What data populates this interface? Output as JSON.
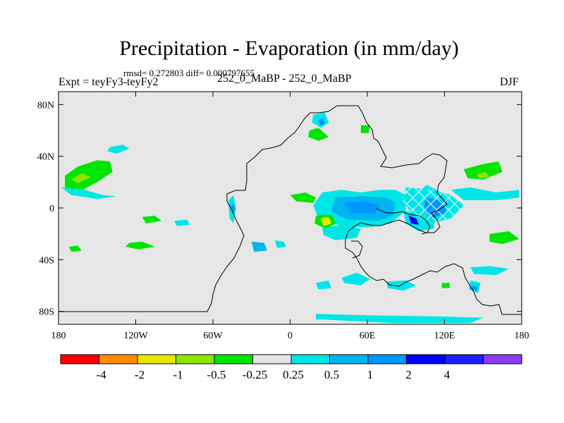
{
  "header": {
    "title": "Precipitation - Evaporation (in mm/day)",
    "stats": "rmsd= 0.272803 diff= 0.000797655",
    "expt": "Expt = teyFy3-teyFy2",
    "center_label": "252_0_MaBP - 252_0_MaBP",
    "season": "DJF"
  },
  "chart_data": {
    "type": "heatmap",
    "title": "Precipitation - Evaporation (in mm/day)",
    "x_axis": {
      "range": [
        -180,
        180
      ],
      "ticks": [
        -180,
        -120,
        -60,
        0,
        60,
        120,
        180
      ],
      "tick_labels": [
        "180",
        "120W",
        "60W",
        "0",
        "60E",
        "120E",
        "180"
      ]
    },
    "y_axis": {
      "range": [
        -90,
        90
      ],
      "ticks": [
        80,
        40,
        0,
        -40,
        -80
      ],
      "tick_labels": [
        "80N",
        "40N",
        "0",
        "40S",
        "80S"
      ]
    },
    "background_color": "#e6e6e6",
    "colorbar": {
      "colors": [
        "#ff0000",
        "#ff8c00",
        "#e6e600",
        "#8ce600",
        "#00e600",
        "#e6e6e6",
        "#00e6e6",
        "#00b4f0",
        "#0096ff",
        "#0000ff",
        "#1e1eff",
        "#8c3cf0"
      ],
      "labels": [
        "-4",
        "-2",
        "-1",
        "-0.5",
        "-0.25",
        "0.25",
        "0.5",
        "1",
        "2",
        "4"
      ]
    },
    "regions": [
      {
        "color": "#00e600",
        "polygon": [
          [
            -175,
            25
          ],
          [
            -165,
            32
          ],
          [
            -150,
            37
          ],
          [
            -140,
            36
          ],
          [
            -138,
            28
          ],
          [
            -150,
            20
          ],
          [
            -165,
            12
          ],
          [
            -175,
            14
          ]
        ]
      },
      {
        "color": "#8ce600",
        "polygon": [
          [
            -170,
            22
          ],
          [
            -162,
            27
          ],
          [
            -155,
            24
          ],
          [
            -165,
            19
          ]
        ]
      },
      {
        "color": "#00e6e6",
        "polygon": [
          [
            -178,
            16
          ],
          [
            -160,
            14
          ],
          [
            -145,
            10
          ],
          [
            -135,
            9
          ],
          [
            -150,
            7
          ],
          [
            -170,
            10
          ]
        ]
      },
      {
        "color": "#00e6e6",
        "polygon": [
          [
            -140,
            47
          ],
          [
            -130,
            49
          ],
          [
            -125,
            46
          ],
          [
            -135,
            42
          ],
          [
            -142,
            44
          ]
        ]
      },
      {
        "color": "#00e600",
        "polygon": [
          [
            -125,
            -27
          ],
          [
            -115,
            -26
          ],
          [
            -105,
            -30
          ],
          [
            -118,
            -32
          ],
          [
            -128,
            -30
          ]
        ]
      },
      {
        "color": "#00e600",
        "polygon": [
          [
            -115,
            -7
          ],
          [
            -105,
            -6
          ],
          [
            -100,
            -10
          ],
          [
            -112,
            -12
          ]
        ]
      },
      {
        "color": "#00e6e6",
        "polygon": [
          [
            -90,
            -10
          ],
          [
            -80,
            -9
          ],
          [
            -78,
            -13
          ],
          [
            -88,
            -14
          ]
        ]
      },
      {
        "color": "#00e600",
        "polygon": [
          [
            -172,
            -30
          ],
          [
            -165,
            -29
          ],
          [
            -162,
            -33
          ],
          [
            -170,
            -34
          ]
        ]
      },
      {
        "color": "#00e6e6",
        "polygon": [
          [
            -48,
            6
          ],
          [
            -44,
            10
          ],
          [
            -42,
            0
          ],
          [
            -44,
            -12
          ],
          [
            -47,
            -8
          ]
        ]
      },
      {
        "color": "#0096ff",
        "polygon": [
          [
            -46,
            2
          ],
          [
            -44,
            4
          ],
          [
            -43,
            -2
          ],
          [
            -45,
            -4
          ]
        ]
      },
      {
        "color": "#00b4f0",
        "polygon": [
          [
            -30,
            -26
          ],
          [
            -20,
            -27
          ],
          [
            -18,
            -33
          ],
          [
            -28,
            -34
          ]
        ]
      },
      {
        "color": "#00e6e6",
        "polygon": [
          [
            -12,
            -25
          ],
          [
            -5,
            -26
          ],
          [
            -3,
            -30
          ],
          [
            -10,
            -31
          ]
        ]
      },
      {
        "color": "#00e600",
        "polygon": [
          [
            15,
            60
          ],
          [
            22,
            62
          ],
          [
            30,
            55
          ],
          [
            22,
            52
          ],
          [
            14,
            55
          ]
        ]
      },
      {
        "color": "#00e6e6",
        "polygon": [
          [
            18,
            72
          ],
          [
            27,
            74
          ],
          [
            30,
            66
          ],
          [
            24,
            62
          ],
          [
            17,
            66
          ]
        ]
      },
      {
        "color": "#0096ff",
        "polygon": [
          [
            22,
            68
          ],
          [
            26,
            70
          ],
          [
            27,
            65
          ],
          [
            23,
            64
          ]
        ]
      },
      {
        "color": "#00e600",
        "polygon": [
          [
            55,
            64
          ],
          [
            62,
            64
          ],
          [
            61,
            58
          ],
          [
            55,
            58
          ]
        ]
      },
      {
        "color": "#00e600",
        "polygon": [
          [
            0,
            10
          ],
          [
            12,
            12
          ],
          [
            20,
            8
          ],
          [
            18,
            4
          ],
          [
            5,
            5
          ]
        ]
      },
      {
        "color": "#00e6e6",
        "polygon": [
          [
            25,
            12
          ],
          [
            40,
            14
          ],
          [
            55,
            12
          ],
          [
            70,
            14
          ],
          [
            82,
            14
          ],
          [
            90,
            10
          ],
          [
            90,
            -2
          ],
          [
            78,
            -12
          ],
          [
            60,
            -15
          ],
          [
            40,
            -14
          ],
          [
            22,
            -8
          ],
          [
            18,
            2
          ]
        ]
      },
      {
        "color": "#00b4f0",
        "polygon": [
          [
            35,
            8
          ],
          [
            55,
            9
          ],
          [
            75,
            8
          ],
          [
            82,
            4
          ],
          [
            80,
            -6
          ],
          [
            68,
            -10
          ],
          [
            45,
            -9
          ],
          [
            32,
            -3
          ]
        ]
      },
      {
        "color": "#0096ff",
        "polygon": [
          [
            42,
            4
          ],
          [
            58,
            5
          ],
          [
            70,
            2
          ],
          [
            66,
            -4
          ],
          [
            48,
            -4
          ]
        ]
      },
      {
        "color": "#00e6e6",
        "polygon": [
          [
            25,
            -15
          ],
          [
            42,
            -13
          ],
          [
            55,
            -16
          ],
          [
            52,
            -23
          ],
          [
            35,
            -25
          ],
          [
            26,
            -21
          ]
        ]
      },
      {
        "color": "#00e600",
        "polygon": [
          [
            20,
            -6
          ],
          [
            32,
            -5
          ],
          [
            36,
            -12
          ],
          [
            28,
            -16
          ],
          [
            19,
            -12
          ]
        ]
      },
      {
        "color": "#e6e600",
        "polygon": [
          [
            24,
            -8
          ],
          [
            30,
            -7
          ],
          [
            32,
            -12
          ],
          [
            26,
            -14
          ]
        ]
      },
      {
        "color": "#00e6e6",
        "polygon": [
          [
            88,
            -2
          ],
          [
            100,
            -4
          ],
          [
            112,
            -8
          ],
          [
            112,
            -16
          ],
          [
            100,
            -18
          ],
          [
            90,
            -12
          ]
        ]
      },
      {
        "color": "#0000ff",
        "polygon": [
          [
            92,
            -6
          ],
          [
            98,
            -8
          ],
          [
            100,
            -13
          ],
          [
            94,
            -12
          ]
        ]
      },
      {
        "color": "#0096ff",
        "polygon": [
          [
            112,
            4
          ],
          [
            120,
            8
          ],
          [
            126,
            6
          ],
          [
            124,
            -2
          ],
          [
            116,
            -2
          ]
        ]
      },
      {
        "color": "#1e1eff",
        "polygon": [
          [
            114,
            2
          ],
          [
            118,
            5
          ],
          [
            122,
            2
          ],
          [
            118,
            -1
          ]
        ]
      },
      {
        "color": "#00e6e6",
        "polygon": [
          [
            125,
            14
          ],
          [
            140,
            16
          ],
          [
            160,
            12
          ],
          [
            178,
            14
          ],
          [
            178,
            8
          ],
          [
            160,
            6
          ],
          [
            135,
            6
          ]
        ]
      },
      {
        "color": "#00e6e6",
        "polygon": [
          [
            100,
            12
          ],
          [
            106,
            18
          ],
          [
            114,
            14
          ],
          [
            108,
            8
          ]
        ]
      },
      {
        "color": "#00e600",
        "polygon": [
          [
            135,
            30
          ],
          [
            150,
            34
          ],
          [
            162,
            36
          ],
          [
            165,
            28
          ],
          [
            150,
            22
          ],
          [
            138,
            23
          ]
        ]
      },
      {
        "color": "#8ce600",
        "polygon": [
          [
            145,
            26
          ],
          [
            152,
            28
          ],
          [
            155,
            24
          ],
          [
            147,
            23
          ]
        ]
      },
      {
        "color": "#00e600",
        "polygon": [
          [
            155,
            -20
          ],
          [
            170,
            -18
          ],
          [
            178,
            -24
          ],
          [
            165,
            -28
          ],
          [
            155,
            -26
          ]
        ]
      },
      {
        "color": "#00e6e6",
        "polygon": [
          [
            140,
            -46
          ],
          [
            155,
            -45
          ],
          [
            170,
            -47
          ],
          [
            160,
            -52
          ],
          [
            143,
            -51
          ]
        ]
      },
      {
        "color": "#00e6e6",
        "polygon": [
          [
            140,
            -56
          ],
          [
            148,
            -58
          ],
          [
            146,
            -66
          ],
          [
            139,
            -63
          ]
        ]
      },
      {
        "color": "#0096ff",
        "polygon": [
          [
            142,
            -60
          ],
          [
            146,
            -61
          ],
          [
            145,
            -64
          ],
          [
            141,
            -63
          ]
        ]
      },
      {
        "color": "#00e6e6",
        "polygon": [
          [
            40,
            -54
          ],
          [
            52,
            -50
          ],
          [
            62,
            -55
          ],
          [
            55,
            -60
          ],
          [
            42,
            -58
          ]
        ]
      },
      {
        "color": "#00e6e6",
        "polygon": [
          [
            75,
            -57
          ],
          [
            90,
            -56
          ],
          [
            98,
            -60
          ],
          [
            88,
            -64
          ],
          [
            76,
            -62
          ]
        ]
      },
      {
        "color": "#00e6e6",
        "polygon": [
          [
            20,
            -82
          ],
          [
            60,
            -83
          ],
          [
            120,
            -84
          ],
          [
            150,
            -85
          ],
          [
            140,
            -89
          ],
          [
            80,
            -89
          ],
          [
            20,
            -86
          ]
        ]
      },
      {
        "color": "#00e6e6",
        "polygon": [
          [
            20,
            -58
          ],
          [
            30,
            -56
          ],
          [
            32,
            -62
          ],
          [
            22,
            -63
          ]
        ]
      },
      {
        "color": "#00e600",
        "polygon": [
          [
            118,
            -58
          ],
          [
            124,
            -58
          ],
          [
            124,
            -62
          ],
          [
            118,
            -62
          ]
        ]
      }
    ],
    "hatched_regions": [
      {
        "color": "#00e6e6",
        "polygon": [
          [
            90,
            16
          ],
          [
            112,
            14
          ],
          [
            125,
            10
          ],
          [
            135,
            2
          ],
          [
            125,
            -8
          ],
          [
            110,
            -12
          ],
          [
            95,
            -5
          ],
          [
            88,
            5
          ]
        ]
      },
      {
        "color": "#0096ff",
        "polygon": [
          [
            105,
            8
          ],
          [
            118,
            6
          ],
          [
            122,
            -4
          ],
          [
            110,
            -8
          ],
          [
            104,
            -2
          ]
        ]
      }
    ]
  }
}
